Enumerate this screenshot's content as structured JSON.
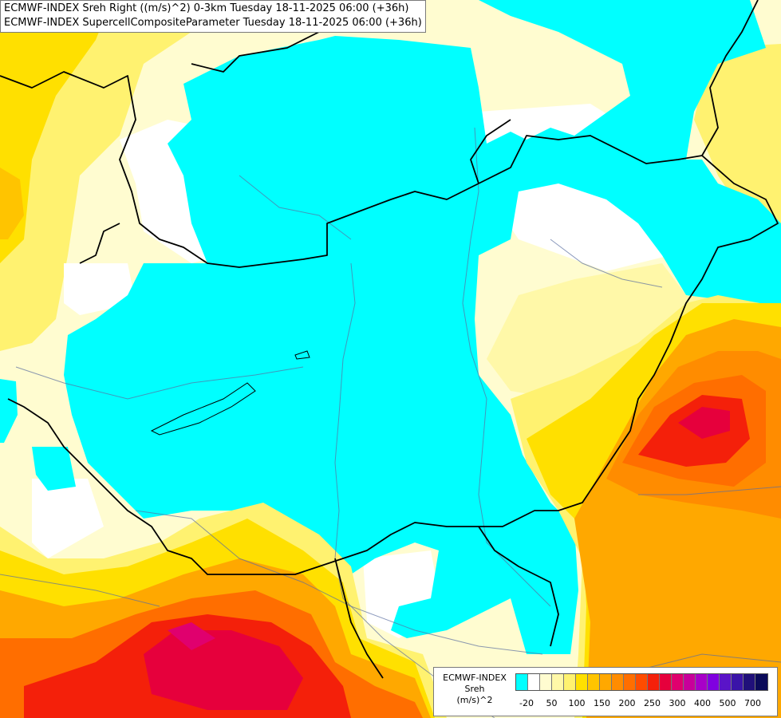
{
  "header": {
    "title_line1": "ECMWF-INDEX Sreh Right ((m/s)^2) 0-3km Tuesday 18-11-2025 06:00 (+36h)",
    "title_line2": "ECMWF-INDEX SupercellCompositeParameter Tuesday 18-11-2025 06:00 (+36h)"
  },
  "legend": {
    "line1": "ECMWF-INDEX",
    "line2": "Sreh",
    "line3": "(m/s)^2",
    "tick_labels": [
      "-20",
      "50",
      "100",
      "150",
      "200",
      "250",
      "300",
      "400",
      "500",
      "700"
    ],
    "colors": [
      "#00ffff",
      "#ffffff",
      "#fffcd0",
      "#fff8a8",
      "#fff270",
      "#ffe000",
      "#ffc400",
      "#ffa800",
      "#ff8c00",
      "#ff6e00",
      "#ff4c00",
      "#f4200a",
      "#e6003c",
      "#e0006e",
      "#c8009a",
      "#a800c8",
      "#8000e0",
      "#5a14c8",
      "#3a14a8",
      "#20107a",
      "#0a0a5a"
    ]
  },
  "map_colors": {
    "cyan": "#00ffff",
    "white": "#ffffff",
    "pale_yellow": "#fffcd0",
    "light_yellow": "#fff8a8",
    "yellow": "#fff270",
    "gold": "#ffe000",
    "amber": "#ffc400",
    "orange": "#ffa800",
    "dark_orange": "#ff8c00",
    "red_orange": "#ff6e00",
    "red": "#f4200a",
    "crimson": "#e6003c",
    "magenta": "#e0006e",
    "border": "#000000",
    "river": "#5a6ea0"
  }
}
